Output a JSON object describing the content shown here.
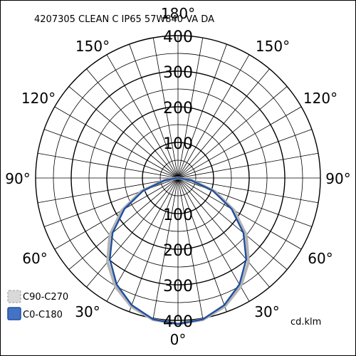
{
  "chart_data": {
    "type": "polar",
    "title": "4207305 CLEAN C IP65 57W840 VA DA",
    "unit": "cd.klm",
    "radial_ticks": [
      100,
      200,
      300,
      400
    ],
    "radial_max": 400,
    "angle_labels": {
      "top": "180°",
      "upper_left": "150°",
      "upper_right": "150°",
      "mid_upper_left": "120°",
      "mid_upper_right": "120°",
      "left": "90°",
      "right": "90°",
      "mid_lower_left": "60°",
      "mid_lower_right": "60°",
      "lower_left": "30°",
      "lower_right": "30°",
      "bottom": "0°"
    },
    "legend": [
      {
        "name": "C90-C270",
        "color": "#b4b4b4",
        "fill": "#d9d9d9"
      },
      {
        "name": "C0-C180",
        "color": "#1f4fa0",
        "fill": "#4472c4"
      }
    ],
    "series": [
      {
        "name": "C90-C270",
        "color": "#b4b4b4",
        "gamma": [
          0,
          10,
          20,
          30,
          40,
          50,
          60,
          70,
          80,
          90
        ],
        "values": [
          410,
          404,
          384,
          352,
          308,
          250,
          182,
          110,
          40,
          2
        ]
      },
      {
        "name": "C0-C180",
        "color": "#1f4fa0",
        "gamma": [
          0,
          10,
          20,
          30,
          40,
          50,
          60,
          70,
          80,
          90
        ],
        "values": [
          410,
          403,
          380,
          345,
          298,
          240,
          174,
          104,
          38,
          2
        ]
      }
    ]
  }
}
